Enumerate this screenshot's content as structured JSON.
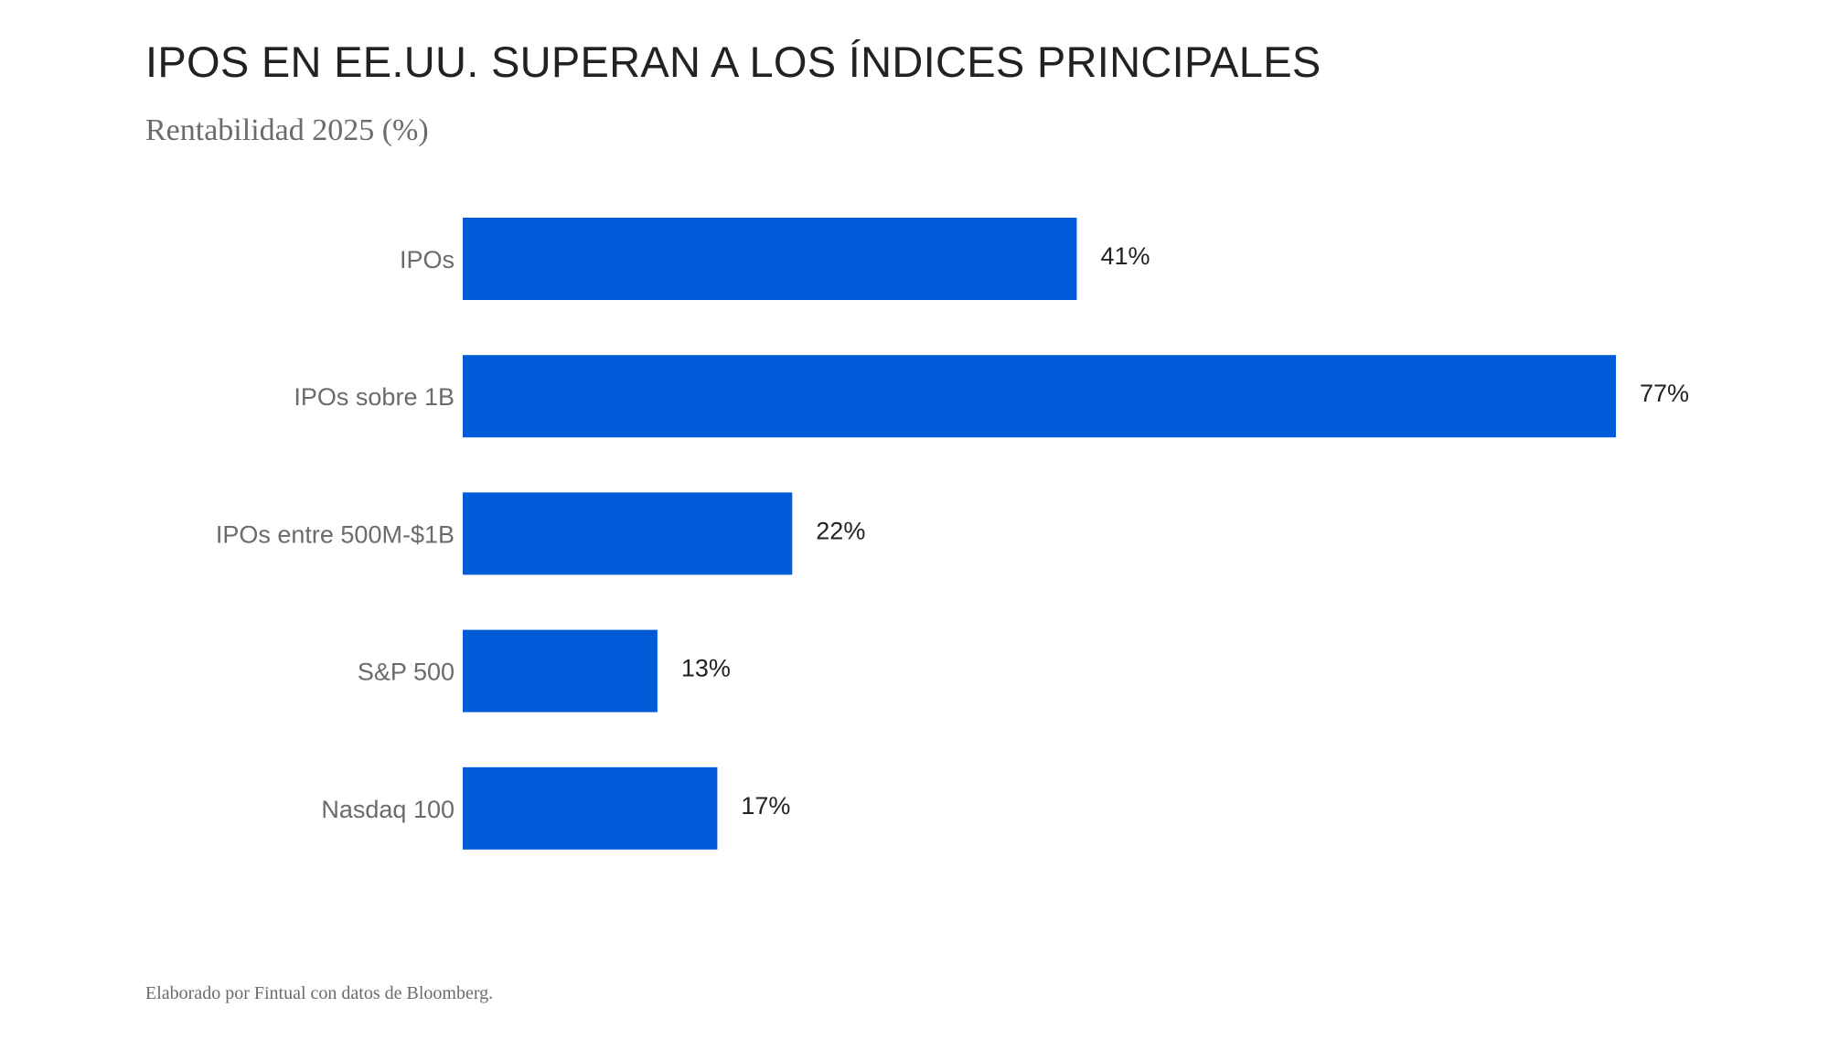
{
  "chart_data": {
    "type": "bar",
    "orientation": "horizontal",
    "title": "IPOS EN EE.UU. SUPERAN A LOS ÍNDICES PRINCIPALES",
    "subtitle": "Rentabilidad 2025 (%)",
    "categories": [
      "IPOs",
      "IPOs sobre 1B",
      "IPOs entre 500M-$1B",
      "S&P 500",
      "Nasdaq 100"
    ],
    "values": [
      41,
      77,
      22,
      13,
      17
    ],
    "data_labels": [
      "41%",
      "77%",
      "22%",
      "13%",
      "17%"
    ],
    "xlim": [
      0,
      77
    ],
    "grid": false,
    "bar_color": "#005bd8",
    "footer": "Elaborado por Fintual con datos de Bloomberg."
  }
}
